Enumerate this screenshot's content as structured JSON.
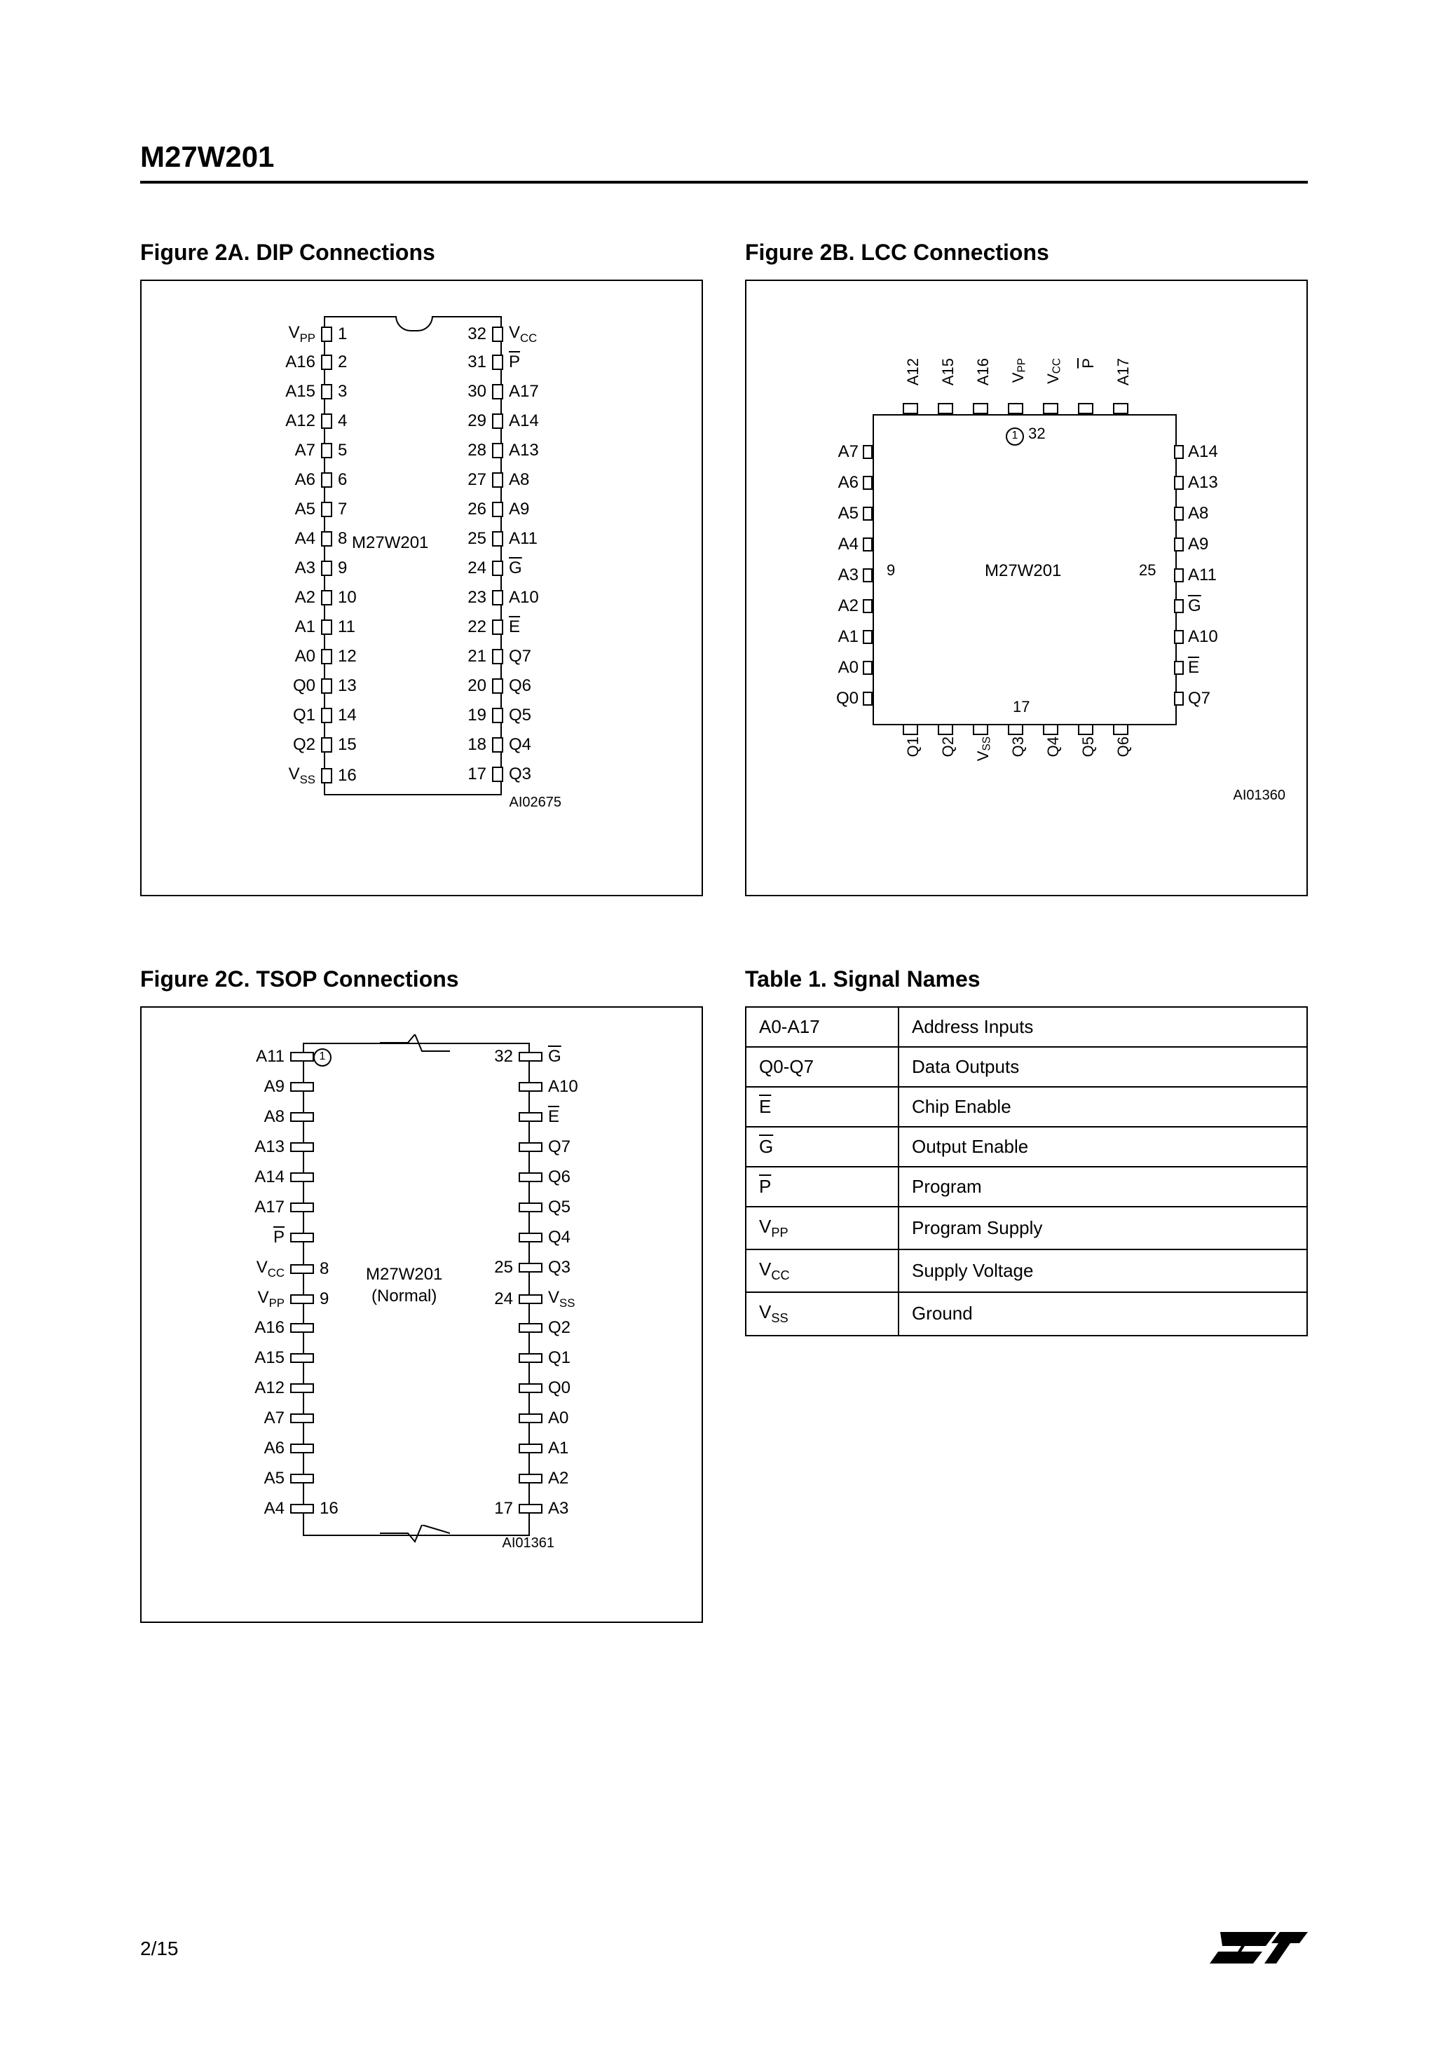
{
  "header": {
    "title": "M27W201"
  },
  "footer": {
    "page": "2/15",
    "logo": "ST"
  },
  "figA": {
    "title": "Figure 2A. DIP Connections",
    "chipName": "M27W201",
    "code": "AI02675",
    "leftPins": [
      {
        "label": "V<sub>PP</sub>",
        "num": "1"
      },
      {
        "label": "A16",
        "num": "2"
      },
      {
        "label": "A15",
        "num": "3"
      },
      {
        "label": "A12",
        "num": "4"
      },
      {
        "label": "A7",
        "num": "5"
      },
      {
        "label": "A6",
        "num": "6"
      },
      {
        "label": "A5",
        "num": "7"
      },
      {
        "label": "A4",
        "num": "8"
      },
      {
        "label": "A3",
        "num": "9"
      },
      {
        "label": "A2",
        "num": "10"
      },
      {
        "label": "A1",
        "num": "11"
      },
      {
        "label": "A0",
        "num": "12"
      },
      {
        "label": "Q0",
        "num": "13"
      },
      {
        "label": "Q1",
        "num": "14"
      },
      {
        "label": "Q2",
        "num": "15"
      },
      {
        "label": "V<sub>SS</sub>",
        "num": "16"
      }
    ],
    "rightPins": [
      {
        "label": "V<sub>CC</sub>",
        "num": "32"
      },
      {
        "label": "<span class='overline'>P</span>",
        "num": "31"
      },
      {
        "label": "A17",
        "num": "30"
      },
      {
        "label": "A14",
        "num": "29"
      },
      {
        "label": "A13",
        "num": "28"
      },
      {
        "label": "A8",
        "num": "27"
      },
      {
        "label": "A9",
        "num": "26"
      },
      {
        "label": "A11",
        "num": "25"
      },
      {
        "label": "<span class='overline'>G</span>",
        "num": "24"
      },
      {
        "label": "A10",
        "num": "23"
      },
      {
        "label": "<span class='overline'>E</span>",
        "num": "22"
      },
      {
        "label": "Q7",
        "num": "21"
      },
      {
        "label": "Q6",
        "num": "20"
      },
      {
        "label": "Q5",
        "num": "19"
      },
      {
        "label": "Q4",
        "num": "18"
      },
      {
        "label": "Q3",
        "num": "17"
      }
    ]
  },
  "figB": {
    "title": "Figure 2B. LCC Connections",
    "chipName": "M27W201",
    "code": "AI01360",
    "topPins": [
      "A12",
      "A15",
      "A16",
      "V<sub>PP</sub>",
      "V<sub>CC</sub>",
      "<span class='overline'>P</span>",
      "A17"
    ],
    "bottomPins": [
      "Q1",
      "Q2",
      "V<sub>SS</sub>",
      "Q3",
      "Q4",
      "Q5",
      "Q6"
    ],
    "leftPins": [
      "A7",
      "A6",
      "A5",
      "A4",
      "A3",
      "A2",
      "A1",
      "A0",
      "Q0"
    ],
    "rightPins": [
      "A14",
      "A13",
      "A8",
      "A9",
      "A11",
      "<span class='overline'>G</span>",
      "A10",
      "<span class='overline'>E</span>",
      "Q7"
    ],
    "cornerNums": {
      "topRight": "32",
      "leftMid": "9",
      "rightMid": "25",
      "bottomMid": "17"
    }
  },
  "figC": {
    "title": "Figure 2C. TSOP Connections",
    "chipName": "M27W201",
    "chipSub": "(Normal)",
    "code": "AI01361",
    "leftPins": [
      {
        "label": "A11",
        "num": ""
      },
      {
        "label": "A9",
        "num": ""
      },
      {
        "label": "A8",
        "num": ""
      },
      {
        "label": "A13",
        "num": ""
      },
      {
        "label": "A14",
        "num": ""
      },
      {
        "label": "A17",
        "num": ""
      },
      {
        "label": "<span class='overline'>P</span>",
        "num": ""
      },
      {
        "label": "V<sub>CC</sub>",
        "num": "8"
      },
      {
        "label": "V<sub>PP</sub>",
        "num": "9"
      },
      {
        "label": "A16",
        "num": ""
      },
      {
        "label": "A15",
        "num": ""
      },
      {
        "label": "A12",
        "num": ""
      },
      {
        "label": "A7",
        "num": ""
      },
      {
        "label": "A6",
        "num": ""
      },
      {
        "label": "A5",
        "num": ""
      },
      {
        "label": "A4",
        "num": "16"
      }
    ],
    "rightPins": [
      {
        "label": "<span class='overline'>G</span>",
        "num": "32"
      },
      {
        "label": "A10",
        "num": ""
      },
      {
        "label": "<span class='overline'>E</span>",
        "num": ""
      },
      {
        "label": "Q7",
        "num": ""
      },
      {
        "label": "Q6",
        "num": ""
      },
      {
        "label": "Q5",
        "num": ""
      },
      {
        "label": "Q4",
        "num": ""
      },
      {
        "label": "Q3",
        "num": "25"
      },
      {
        "label": "V<sub>SS</sub>",
        "num": "24"
      },
      {
        "label": "Q2",
        "num": ""
      },
      {
        "label": "Q1",
        "num": ""
      },
      {
        "label": "Q0",
        "num": ""
      },
      {
        "label": "A0",
        "num": ""
      },
      {
        "label": "A1",
        "num": ""
      },
      {
        "label": "A2",
        "num": ""
      },
      {
        "label": "A3",
        "num": "17"
      }
    ]
  },
  "table1": {
    "title": "Table 1. Signal Names",
    "rows": [
      {
        "sig": "A0-A17",
        "desc": "Address Inputs"
      },
      {
        "sig": "Q0-Q7",
        "desc": "Data Outputs"
      },
      {
        "sig": "<span class='overline'>E</span>",
        "desc": "Chip Enable"
      },
      {
        "sig": "<span class='overline'>G</span>",
        "desc": "Output Enable"
      },
      {
        "sig": "<span class='overline'>P</span>",
        "desc": "Program"
      },
      {
        "sig": "V<sub>PP</sub>",
        "desc": "Program Supply"
      },
      {
        "sig": "V<sub>CC</sub>",
        "desc": "Supply Voltage"
      },
      {
        "sig": "V<sub>SS</sub>",
        "desc": "Ground"
      }
    ]
  },
  "style": {
    "border_color": "#000000",
    "bg_color": "#ffffff",
    "font_main": "Arial",
    "title_fontsize": 42,
    "fig_title_fontsize": 32,
    "pin_fontsize": 24,
    "table_fontsize": 26
  }
}
